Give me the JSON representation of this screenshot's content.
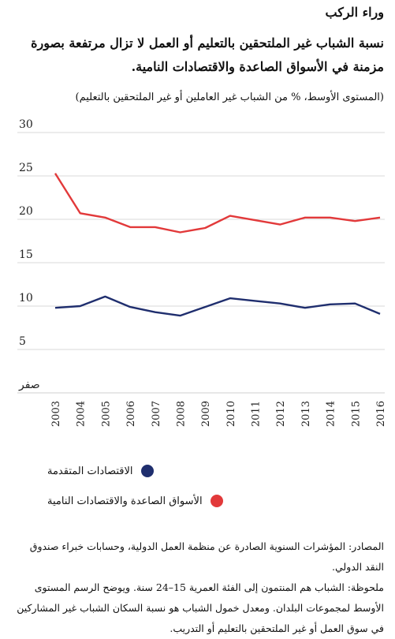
{
  "header": {
    "kicker": "وراء الركب",
    "title": "نسبة الشباب غير الملتحقين بالتعليم أو العمل لا تزال مرتفعة بصورة مزمنة في الأسواق الصاعدة والاقتصادات النامية.",
    "subtitle": "(المستوى الأوسط، % من الشباب غير العاملين أو غير الملتحقين بالتعليم)"
  },
  "chart_data": {
    "type": "line",
    "x": [
      "2003",
      "2004",
      "2005",
      "2006",
      "2007",
      "2008",
      "2009",
      "2010",
      "2011",
      "2012",
      "2013",
      "2014",
      "2015",
      "2016"
    ],
    "series": [
      {
        "name": "الاقتصادات المتقدمة",
        "color": "#1f2e6e",
        "values": [
          9.8,
          10.0,
          11.1,
          9.9,
          9.3,
          8.9,
          9.9,
          10.9,
          10.6,
          10.3,
          9.8,
          10.2,
          10.3,
          9.1
        ]
      },
      {
        "name": "الأسواق الصاعدة والاقتصادات النامية",
        "color": "#e2393a",
        "values": [
          25.3,
          20.7,
          20.2,
          19.1,
          19.1,
          18.5,
          19.0,
          20.4,
          19.9,
          19.4,
          20.2,
          20.2,
          19.8,
          20.2
        ]
      }
    ],
    "y_ticks": [
      "صفر",
      "5",
      "10",
      "15",
      "20",
      "25",
      "30"
    ],
    "y_tick_values": [
      0,
      5,
      10,
      15,
      20,
      25,
      30
    ],
    "ylim": [
      0,
      30
    ],
    "grid": true,
    "legend_position": "bottom"
  },
  "notes": {
    "sources": "المصادر: المؤشرات السنوية الصادرة عن منظمة العمل الدولية، وحسابات خبراء صندوق النقد الدولي.",
    "note": "ملحوظة: الشباب هم المنتمون إلى الفئة العمرية 15–24 سنة. ويوضح الرسم المستوى الأوسط لمجموعات البلدان. ومعدل خمول الشباب هو نسبة السكان الشباب غير المشاركين في سوق العمل أو غير الملتحقين بالتعليم أو التدريب."
  }
}
